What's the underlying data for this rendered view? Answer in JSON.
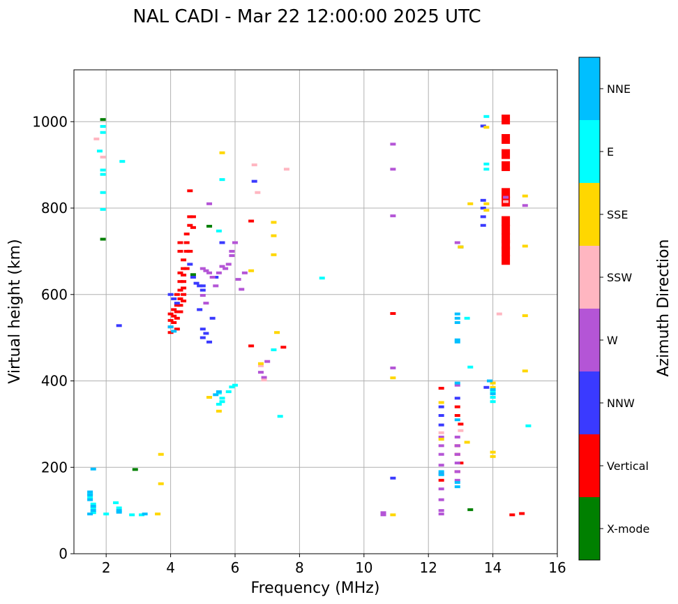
{
  "chart_data": {
    "type": "scatter",
    "title": "NAL CADI - Mar 22 12:00:00 2025 UTC",
    "xlabel": "Frequency (MHz)",
    "ylabel": "Virtual height (km)",
    "xlim": [
      1,
      16
    ],
    "ylim": [
      0,
      1120
    ],
    "xticks": [
      2,
      4,
      6,
      8,
      10,
      12,
      14,
      16
    ],
    "yticks": [
      0,
      200,
      400,
      600,
      800,
      1000
    ],
    "grid": true,
    "colorbar": {
      "label": "Azimuth Direction",
      "categories": [
        {
          "name": "X-mode",
          "color": "#008000"
        },
        {
          "name": "Vertical",
          "color": "#ff0000"
        },
        {
          "name": "NNW",
          "color": "#3a3aff"
        },
        {
          "name": "W",
          "color": "#b455d6"
        },
        {
          "name": "SSW",
          "color": "#ffb6c1"
        },
        {
          "name": "SSE",
          "color": "#ffd700"
        },
        {
          "name": "E",
          "color": "#00ffff"
        },
        {
          "name": "NNE",
          "color": "#00bfff"
        }
      ]
    },
    "series": [
      {
        "name": "X-mode",
        "points": [
          [
            1.9,
            1005
          ],
          [
            1.9,
            728
          ],
          [
            13,
            710
          ],
          [
            13.3,
            102
          ],
          [
            4.7,
            646
          ],
          [
            5.2,
            758
          ],
          [
            2.9,
            195
          ]
        ]
      },
      {
        "name": "Vertical",
        "points": [
          [
            4.0,
            512
          ],
          [
            4.0,
            525
          ],
          [
            4.0,
            540
          ],
          [
            4.0,
            555
          ],
          [
            4.1,
            535
          ],
          [
            4.1,
            550
          ],
          [
            4.1,
            565
          ],
          [
            4.2,
            520
          ],
          [
            4.2,
            545
          ],
          [
            4.2,
            560
          ],
          [
            4.2,
            575
          ],
          [
            4.2,
            600
          ],
          [
            4.3,
            560
          ],
          [
            4.3,
            575
          ],
          [
            4.3,
            590
          ],
          [
            4.3,
            610
          ],
          [
            4.3,
            630
          ],
          [
            4.3,
            650
          ],
          [
            4.4,
            585
          ],
          [
            4.4,
            600
          ],
          [
            4.4,
            615
          ],
          [
            4.4,
            630
          ],
          [
            4.4,
            645
          ],
          [
            4.4,
            660
          ],
          [
            4.4,
            680
          ],
          [
            4.5,
            660
          ],
          [
            4.5,
            700
          ],
          [
            4.5,
            720
          ],
          [
            4.5,
            740
          ],
          [
            4.6,
            700
          ],
          [
            4.6,
            760
          ],
          [
            4.6,
            780
          ],
          [
            4.6,
            840
          ],
          [
            4.7,
            780
          ],
          [
            4.7,
            755
          ],
          [
            4.3,
            700
          ],
          [
            4.3,
            720
          ],
          [
            6.5,
            770
          ],
          [
            6.5,
            481
          ],
          [
            7.5,
            478
          ],
          [
            10.9,
            556
          ],
          [
            12.4,
            383
          ],
          [
            12.9,
            340
          ],
          [
            12.9,
            320
          ],
          [
            13.0,
            300
          ],
          [
            12.9,
            250
          ],
          [
            12.9,
            230
          ],
          [
            13.0,
            210
          ],
          [
            12.9,
            190
          ],
          [
            12.4,
            170
          ],
          [
            14.4,
            1005
          ],
          [
            14.4,
            960
          ],
          [
            14.4,
            925
          ],
          [
            14.4,
            897
          ],
          [
            14.4,
            835
          ],
          [
            14.4,
            815
          ],
          [
            14.4,
            770
          ],
          [
            14.4,
            750
          ],
          [
            14.4,
            730
          ],
          [
            14.4,
            715
          ],
          [
            14.4,
            700
          ],
          [
            14.4,
            680
          ],
          [
            14.6,
            90
          ],
          [
            14.9,
            93
          ]
        ]
      },
      {
        "name": "NNW",
        "points": [
          [
            4.0,
            600
          ],
          [
            4.1,
            590
          ],
          [
            4.2,
            580
          ],
          [
            4.6,
            670
          ],
          [
            4.7,
            640
          ],
          [
            4.8,
            626
          ],
          [
            5.0,
            620
          ],
          [
            5.0,
            610
          ],
          [
            4.9,
            565
          ],
          [
            5.0,
            520
          ],
          [
            5.0,
            500
          ],
          [
            5.2,
            490
          ],
          [
            5.1,
            510
          ],
          [
            5.3,
            545
          ],
          [
            5.4,
            640
          ],
          [
            5.6,
            720
          ],
          [
            6.6,
            862
          ],
          [
            2.4,
            528
          ],
          [
            10.9,
            175
          ],
          [
            12.4,
            298
          ],
          [
            12.4,
            320
          ],
          [
            12.4,
            340
          ],
          [
            12.9,
            360
          ],
          [
            13.7,
            990
          ],
          [
            13.7,
            818
          ],
          [
            13.7,
            800
          ],
          [
            13.7,
            780
          ],
          [
            13.7,
            760
          ],
          [
            13.8,
            385
          ],
          [
            4.9,
            620
          ]
        ]
      },
      {
        "name": "W",
        "points": [
          [
            5.0,
            660
          ],
          [
            5.1,
            655
          ],
          [
            5.2,
            650
          ],
          [
            5.3,
            640
          ],
          [
            5.4,
            620
          ],
          [
            5.5,
            650
          ],
          [
            5.6,
            665
          ],
          [
            5.7,
            660
          ],
          [
            5.8,
            670
          ],
          [
            5.9,
            690
          ],
          [
            6.0,
            720
          ],
          [
            5.9,
            700
          ],
          [
            6.1,
            635
          ],
          [
            6.2,
            612
          ],
          [
            6.3,
            650
          ],
          [
            5.2,
            810
          ],
          [
            5.1,
            580
          ],
          [
            5.0,
            598
          ],
          [
            6.8,
            420
          ],
          [
            7.0,
            445
          ],
          [
            6.9,
            408
          ],
          [
            10.6,
            95
          ],
          [
            10.6,
            90
          ],
          [
            10.9,
            948
          ],
          [
            10.9,
            890
          ],
          [
            10.9,
            782
          ],
          [
            10.9,
            430
          ],
          [
            12.4,
            270
          ],
          [
            12.4,
            250
          ],
          [
            12.4,
            230
          ],
          [
            12.4,
            205
          ],
          [
            12.4,
            185
          ],
          [
            12.4,
            150
          ],
          [
            12.4,
            125
          ],
          [
            12.4,
            100
          ],
          [
            12.4,
            92
          ],
          [
            12.9,
            720
          ],
          [
            12.9,
            390
          ],
          [
            12.9,
            270
          ],
          [
            12.9,
            250
          ],
          [
            12.9,
            230
          ],
          [
            12.9,
            210
          ],
          [
            12.9,
            190
          ],
          [
            12.9,
            170
          ],
          [
            14.4,
            825
          ],
          [
            15.0,
            806
          ]
        ]
      },
      {
        "name": "SSW",
        "points": [
          [
            1.7,
            960
          ],
          [
            1.9,
            918
          ],
          [
            6.6,
            900
          ],
          [
            6.7,
            836
          ],
          [
            7.6,
            890
          ],
          [
            6.8,
            435
          ],
          [
            6.9,
            402
          ],
          [
            12.4,
            280
          ],
          [
            13.0,
            285
          ],
          [
            14.2,
            555
          ],
          [
            14.4,
            815
          ]
        ]
      },
      {
        "name": "SSE",
        "points": [
          [
            3.6,
            92
          ],
          [
            3.7,
            230
          ],
          [
            3.7,
            162
          ],
          [
            5.2,
            362
          ],
          [
            5.5,
            330
          ],
          [
            5.6,
            928
          ],
          [
            6.5,
            655
          ],
          [
            7.2,
            736
          ],
          [
            7.2,
            692
          ],
          [
            7.3,
            512
          ],
          [
            7.2,
            767
          ],
          [
            6.8,
            440
          ],
          [
            10.9,
            407
          ],
          [
            10.9,
            90
          ],
          [
            13.0,
            710
          ],
          [
            13.3,
            810
          ],
          [
            13.2,
            258
          ],
          [
            13.8,
            987
          ],
          [
            13.8,
            810
          ],
          [
            13.8,
            795
          ],
          [
            14.0,
            235
          ],
          [
            14.0,
            225
          ],
          [
            14.0,
            385
          ],
          [
            14.0,
            395
          ],
          [
            15.0,
            828
          ],
          [
            15.0,
            712
          ],
          [
            15.0,
            551
          ],
          [
            15.0,
            423
          ],
          [
            12.4,
            350
          ],
          [
            12.4,
            265
          ]
        ]
      },
      {
        "name": "E",
        "points": [
          [
            1.9,
            989
          ],
          [
            1.9,
            975
          ],
          [
            1.8,
            932
          ],
          [
            1.9,
            888
          ],
          [
            1.9,
            878
          ],
          [
            1.9,
            836
          ],
          [
            1.9,
            797
          ],
          [
            2.5,
            908
          ],
          [
            5.5,
            747
          ],
          [
            5.6,
            866
          ],
          [
            5.5,
            372
          ],
          [
            5.6,
            360
          ],
          [
            5.6,
            352
          ],
          [
            5.8,
            375
          ],
          [
            5.9,
            386
          ],
          [
            6.0,
            390
          ],
          [
            5.5,
            346
          ],
          [
            7.4,
            318
          ],
          [
            7.2,
            472
          ],
          [
            8.7,
            638
          ],
          [
            13.2,
            545
          ],
          [
            13.3,
            432
          ],
          [
            13.8,
            1012
          ],
          [
            13.8,
            902
          ],
          [
            13.8,
            890
          ],
          [
            14.0,
            375
          ],
          [
            14.0,
            362
          ],
          [
            14.0,
            352
          ],
          [
            15.1,
            296
          ],
          [
            2.0,
            92
          ],
          [
            2.4,
            106
          ],
          [
            2.8,
            90
          ],
          [
            3.1,
            90
          ],
          [
            1.5,
            138
          ],
          [
            1.5,
            130
          ],
          [
            1.6,
            115
          ],
          [
            1.6,
            106
          ],
          [
            1.6,
            95
          ],
          [
            2.3,
            118
          ]
        ]
      },
      {
        "name": "NNE",
        "points": [
          [
            1.5,
            143
          ],
          [
            1.5,
            136
          ],
          [
            1.5,
            125
          ],
          [
            1.6,
            110
          ],
          [
            1.6,
            100
          ],
          [
            1.5,
            92
          ],
          [
            2.4,
            96
          ],
          [
            2.4,
            100
          ],
          [
            3.2,
            92
          ],
          [
            4.0,
            525
          ],
          [
            4.1,
            515
          ],
          [
            5.4,
            368
          ],
          [
            5.5,
            375
          ],
          [
            12.9,
            555
          ],
          [
            12.9,
            545
          ],
          [
            12.9,
            535
          ],
          [
            12.9,
            495
          ],
          [
            12.9,
            490
          ],
          [
            12.9,
            395
          ],
          [
            12.9,
            310
          ],
          [
            12.9,
            165
          ],
          [
            12.9,
            155
          ],
          [
            12.4,
            190
          ],
          [
            12.4,
            183
          ],
          [
            13.9,
            400
          ],
          [
            14.0,
            380
          ],
          [
            14.0,
            370
          ],
          [
            1.6,
            196
          ]
        ]
      }
    ]
  }
}
